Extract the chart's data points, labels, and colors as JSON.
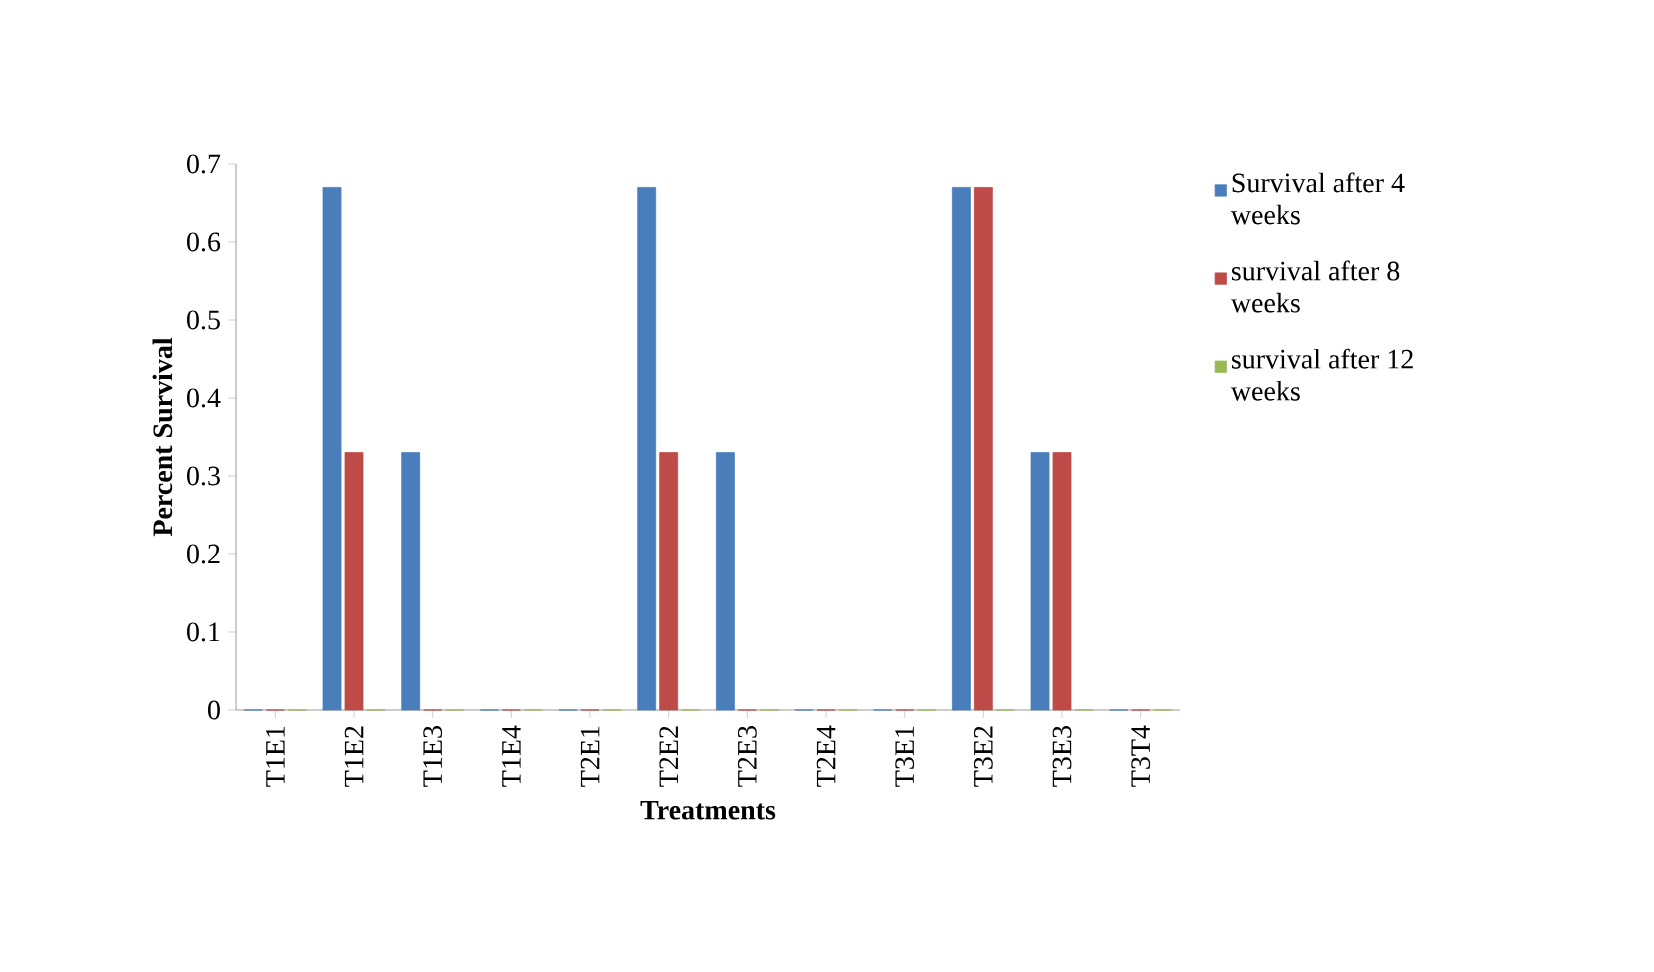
{
  "chart_data": {
    "type": "bar",
    "xlabel": "Treatments",
    "ylabel": "Percent Survival",
    "categories": [
      "T1E1",
      "T1E2",
      "T1E3",
      "T1E4",
      "T2E1",
      "T2E2",
      "T2E3",
      "T2E4",
      "T3E1",
      "T3E2",
      "T3E3",
      "T3T4"
    ],
    "series": [
      {
        "name": "Survival after 4 weeks",
        "color": "#4a7ebb",
        "values": [
          0,
          0.67,
          0.33,
          0,
          0,
          0.67,
          0.33,
          0,
          0,
          0.67,
          0.33,
          0
        ]
      },
      {
        "name": "survival after 8 weeks",
        "color": "#be4b48",
        "values": [
          0,
          0.33,
          0,
          0,
          0,
          0.33,
          0,
          0,
          0,
          0.67,
          0.33,
          0
        ]
      },
      {
        "name": "survival after 12 weeks",
        "color": "#98b954",
        "values": [
          0,
          0,
          0,
          0,
          0,
          0,
          0,
          0,
          0,
          0,
          0,
          0
        ]
      }
    ],
    "ylim": [
      0,
      0.7
    ],
    "yticks": [
      0,
      0.1,
      0.2,
      0.3,
      0.4,
      0.5,
      0.6,
      0.7
    ],
    "grid": false,
    "legend": "right"
  }
}
